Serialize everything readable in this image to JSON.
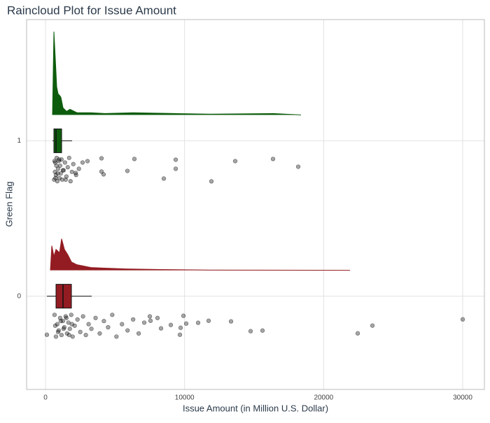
{
  "chart_data": {
    "type": "raincloud",
    "title": "Raincloud Plot for Issue Amount",
    "x_label": "Issue Amount (in Million U.S. Dollar)",
    "y_label": "Green Flag",
    "xlim": [
      -1360,
      31560
    ],
    "xticks": [
      0,
      10000,
      20000,
      30000
    ],
    "ylim": [
      -0.6,
      1.78
    ],
    "yticks": [
      0,
      1
    ],
    "grid": true,
    "groups": [
      {
        "y": 1,
        "color": "#0d5c0d",
        "density_x": [
          504,
          604,
          705,
          805,
          906,
          1007,
          1107,
          1258,
          1510,
          1762,
          2265,
          3272,
          4279,
          6292,
          9313,
          11830,
          16360,
          18374
        ],
        "density_y": [
          0,
          0.536,
          0.36,
          0.18,
          0.135,
          0.126,
          0.113,
          0.045,
          0.023,
          0.036,
          0.014,
          0.014,
          0.009,
          0.014,
          0.009,
          0.005,
          0.009,
          0
        ],
        "box": {
          "min": 500,
          "q1": 604,
          "median": 755,
          "q3": 1158,
          "max": 1912
        },
        "points_x": [
          6393,
          9363,
          13642,
          16360,
          18173,
          9363,
          8507,
          11931,
          5890,
          4027,
          4178,
          3020,
          2668,
          4027,
          2165,
          620,
          680,
          700,
          750,
          800,
          850,
          900,
          950,
          1000,
          1050,
          1100,
          1150,
          1200,
          1300,
          1400,
          1500,
          1600,
          1700,
          1800,
          1900,
          2000,
          2200,
          2400,
          650,
          720,
          780,
          880,
          980,
          1250,
          1450
        ],
        "points_y": [
          0.883,
          0.878,
          0.869,
          0.883,
          0.833,
          0.82,
          0.757,
          0.739,
          0.806,
          0.802,
          0.784,
          0.869,
          0.86,
          0.887,
          0.793,
          0.75,
          0.8,
          0.86,
          0.78,
          0.89,
          0.74,
          0.82,
          0.87,
          0.76,
          0.84,
          0.79,
          0.88,
          0.75,
          0.81,
          0.86,
          0.77,
          0.83,
          0.89,
          0.74,
          0.8,
          0.85,
          0.78,
          0.82,
          0.87,
          0.76,
          0.84,
          0.79,
          0.88,
          0.81,
          0.75
        ]
      },
      {
        "y": 0,
        "color": "#931c22",
        "density_x": [
          352,
          453,
          604,
          755,
          1007,
          1158,
          1359,
          1611,
          1862,
          2265,
          2769,
          3272,
          4279,
          5789,
          8306,
          11830,
          21898
        ],
        "density_y": [
          0,
          0.158,
          0.09,
          0.135,
          0.113,
          0.203,
          0.135,
          0.099,
          0.054,
          0.036,
          0.027,
          0.018,
          0.014,
          0.009,
          0.005,
          0.002,
          0
        ],
        "box": {
          "min": 100,
          "q1": 755,
          "median": 1258,
          "q3": 1862,
          "max": 3322
        },
        "points_x": [
          30003,
          23509,
          22452,
          15605,
          14750,
          13340,
          11729,
          9917,
          9716,
          10975,
          10118,
          9011,
          9666,
          100,
          8306,
          7551,
          8054,
          650,
          750,
          850,
          950,
          1050,
          1150,
          1250,
          1350,
          1450,
          1550,
          1650,
          1750,
          1850,
          1950,
          2100,
          2300,
          2500,
          2700,
          2900,
          3100,
          3300,
          3600,
          3900,
          4200,
          4500,
          4800,
          5100,
          5500,
          5900,
          6300,
          6700,
          7100,
          7500,
          700,
          900,
          1100,
          1300,
          1500,
          1700,
          1900
        ],
        "points_y": [
          -0.149,
          -0.189,
          -0.239,
          -0.221,
          -0.225,
          -0.162,
          -0.158,
          -0.126,
          -0.203,
          -0.171,
          -0.176,
          -0.185,
          -0.248,
          -0.248,
          -0.207,
          -0.158,
          -0.14,
          -0.12,
          -0.26,
          -0.18,
          -0.22,
          -0.14,
          -0.25,
          -0.16,
          -0.2,
          -0.13,
          -0.24,
          -0.17,
          -0.21,
          -0.12,
          -0.26,
          -0.19,
          -0.15,
          -0.23,
          -0.13,
          -0.25,
          -0.18,
          -0.21,
          -0.14,
          -0.24,
          -0.16,
          -0.2,
          -0.12,
          -0.26,
          -0.18,
          -0.22,
          -0.15,
          -0.24,
          -0.17,
          -0.13,
          -0.19,
          -0.23,
          -0.16,
          -0.21,
          -0.14,
          -0.25,
          -0.18
        ]
      }
    ]
  }
}
